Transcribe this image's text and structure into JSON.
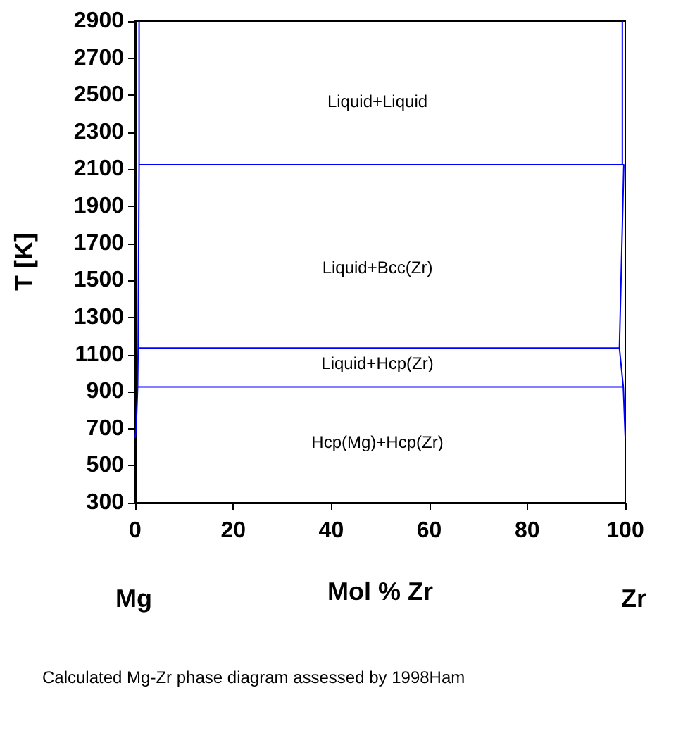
{
  "chart_data": {
    "type": "line",
    "xlabel": "Mol % Zr",
    "ylabel": "T [K]",
    "xlim": [
      0,
      100
    ],
    "xticks": [
      0,
      20,
      40,
      60,
      80,
      100
    ],
    "ylim": [
      300,
      2900
    ],
    "yticks": [
      300,
      500,
      700,
      900,
      1100,
      1300,
      1500,
      1700,
      1900,
      2100,
      2300,
      2500,
      2700,
      2900
    ],
    "grid": false,
    "marker": "none",
    "line_style": "solid",
    "series": [
      {
        "color": "#0000ff",
        "x": [
          0.8,
          0.8,
          0.6,
          0.5,
          0.2,
          0
        ],
        "values": [
          2900,
          2125,
          1135,
          925,
          700,
          650
        ]
      },
      {
        "color": "#0000ff",
        "x": [
          99.4,
          99.4,
          99.7,
          98.8,
          99.6,
          100
        ],
        "values": [
          2900,
          2125,
          2125,
          1135,
          925,
          650
        ]
      },
      {
        "color": "#0000ff",
        "x": [
          0.8,
          99.7
        ],
        "values": [
          2125,
          2125
        ]
      },
      {
        "color": "#0000ff",
        "x": [
          0.6,
          98.8
        ],
        "values": [
          1135,
          1135
        ]
      },
      {
        "color": "#0000ff",
        "x": [
          0.5,
          99.6
        ],
        "values": [
          925,
          925
        ]
      }
    ],
    "annotations": [
      "Liquid+Liquid",
      "Liquid+Bcc(Zr)",
      "Liquid+Hcp(Zr)",
      "Hcp(Mg)+Hcp(Zr)",
      "Mg",
      "Zr",
      "Calculated Mg-Zr phase diagram assessed by 1998Ham"
    ]
  }
}
